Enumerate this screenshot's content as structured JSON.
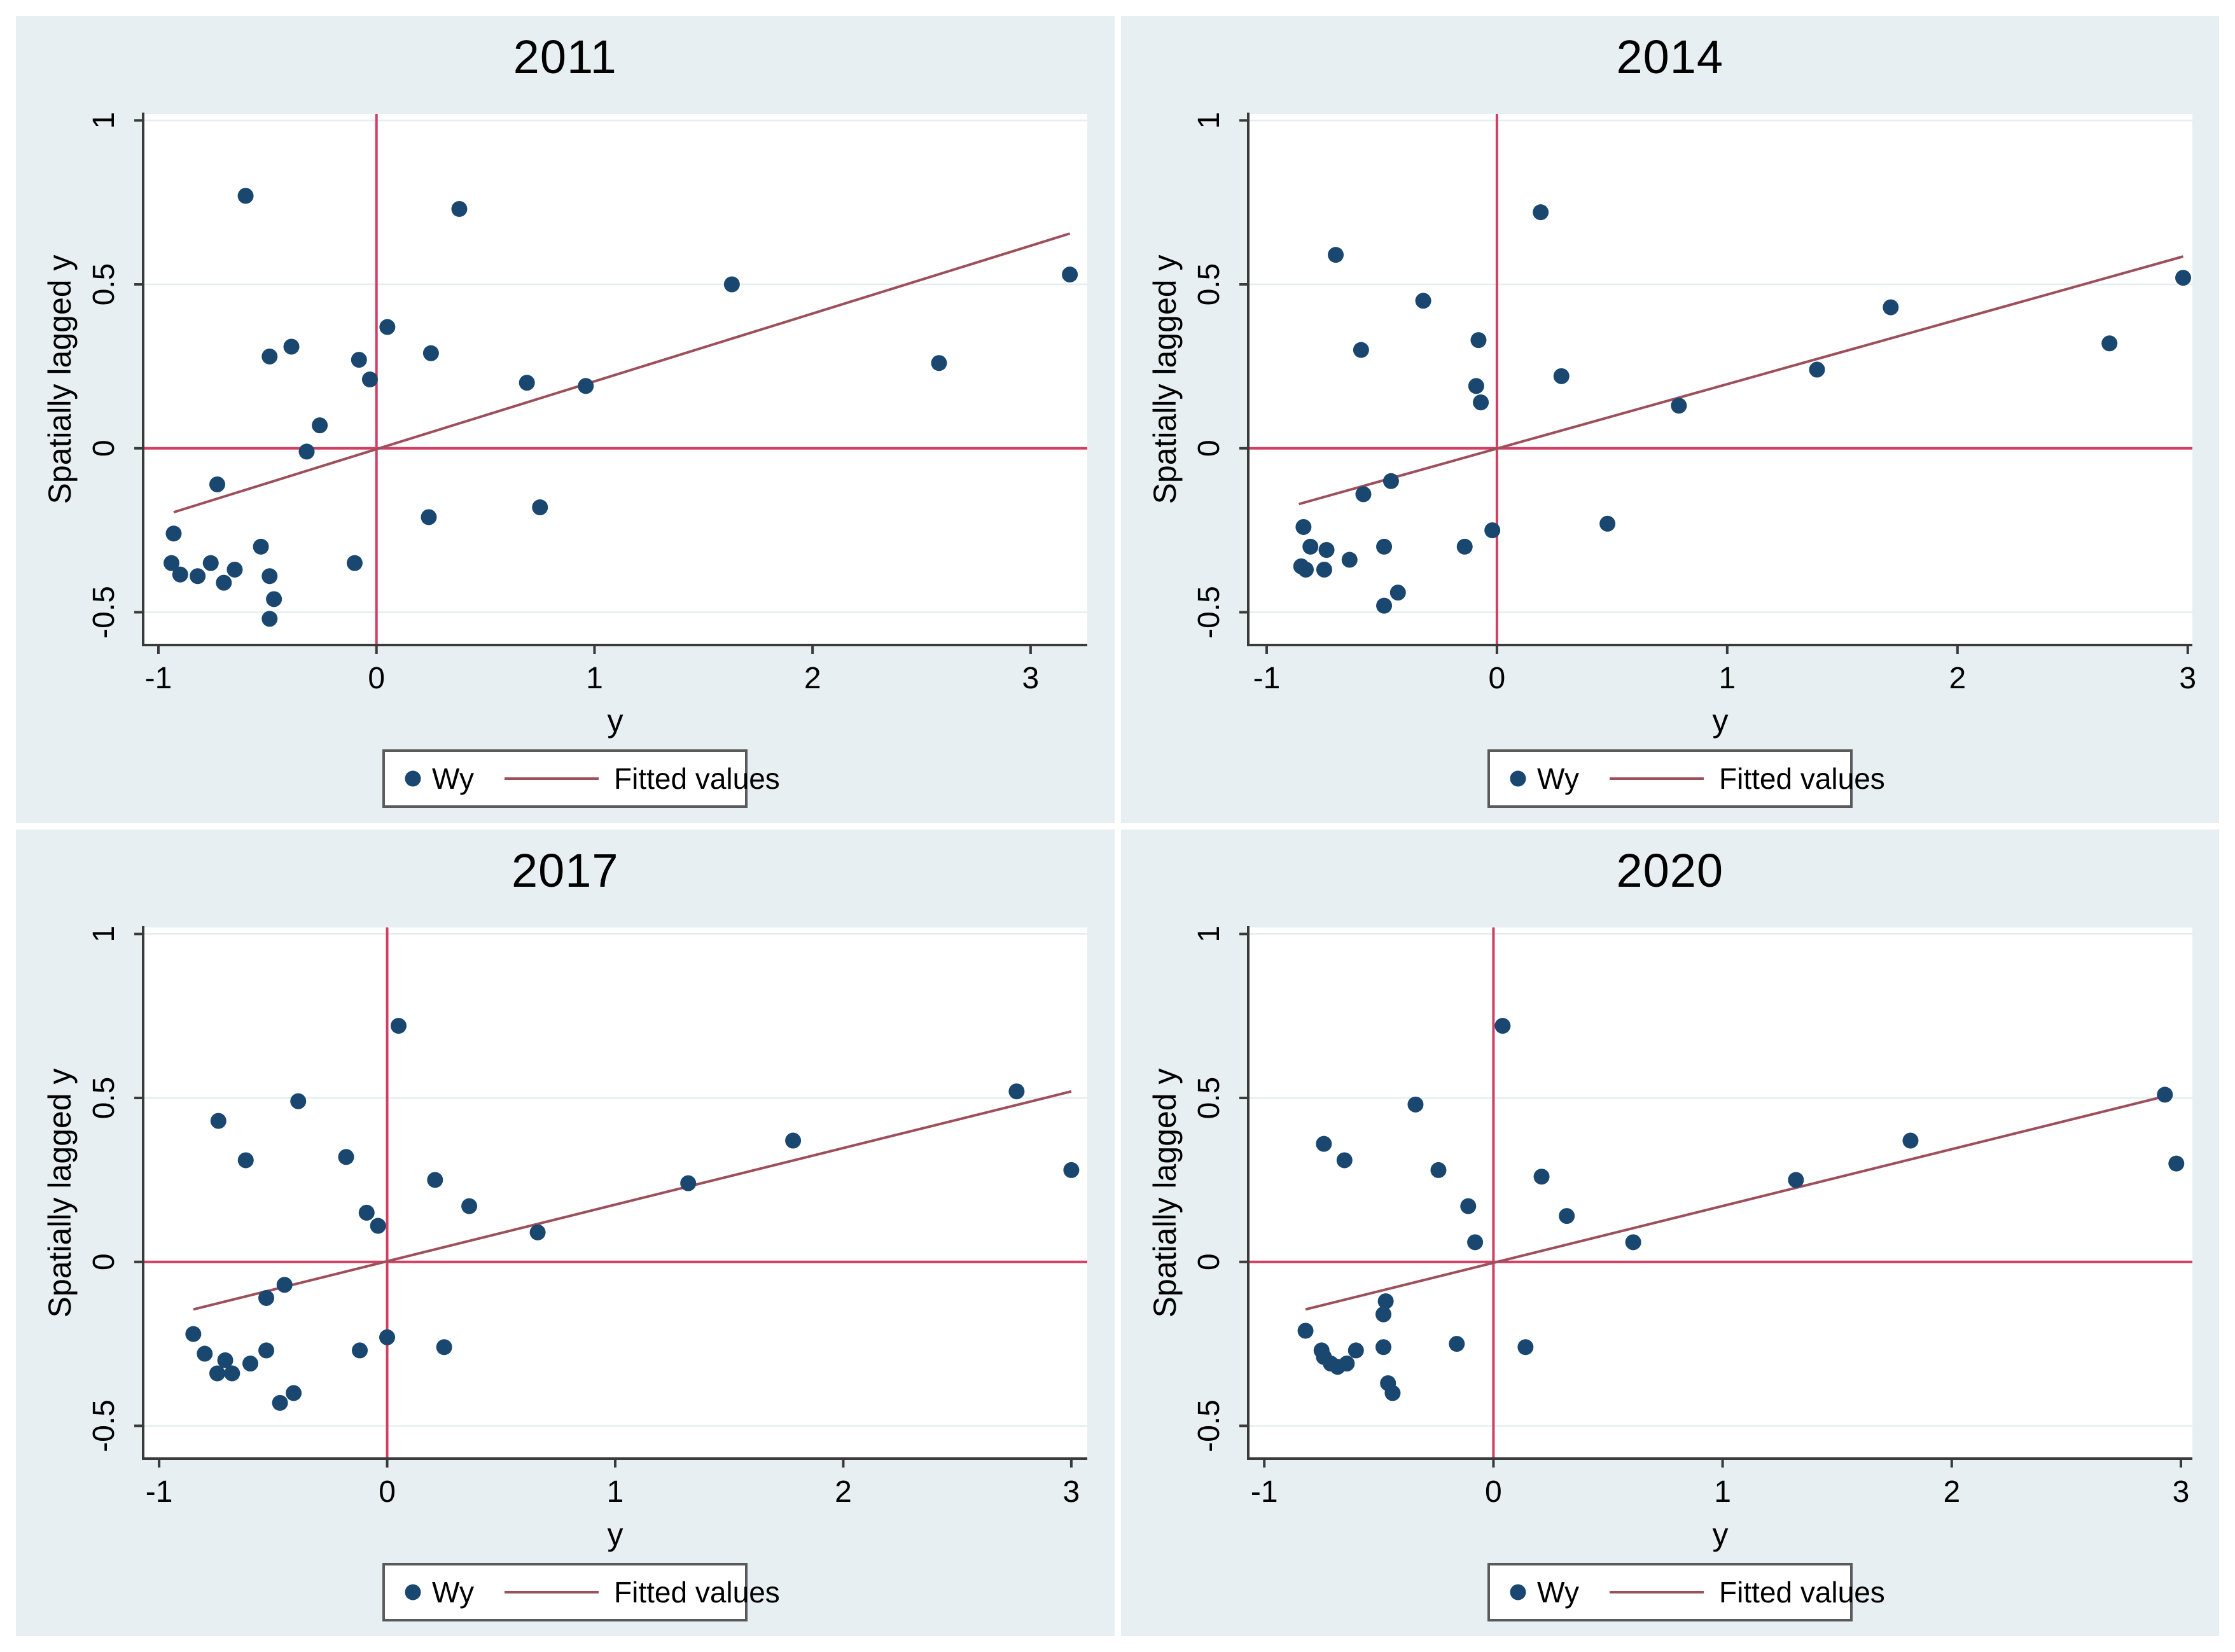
{
  "figure": {
    "background": "#ffffff",
    "panel_background": "#e8eff2",
    "plot_background": "#ffffff",
    "gridline_color": "#e4edf0",
    "axis_color": "#3a3a3a",
    "text_color": "#000000",
    "marker_color": "#1a476f",
    "refline_color": "#d23f63",
    "fitline_color": "#9d4f5b",
    "legend_border_color": "#5a5a5a",
    "legend_background": "#ffffff"
  },
  "chart_data": [
    {
      "type": "scatter",
      "title": "2011",
      "xlabel": "y",
      "ylabel": "Spatially lagged y",
      "xlim": [
        -1.07,
        3.26
      ],
      "ylim": [
        -0.6,
        1.02
      ],
      "x_ticks": [
        -1,
        0,
        1,
        2,
        3
      ],
      "x_tick_labels": [
        "-1",
        "0",
        "1",
        "2",
        "3"
      ],
      "y_ticks": [
        -0.5,
        0,
        0.5,
        1
      ],
      "y_tick_labels": [
        "-0.5",
        "0",
        "0.5",
        "1"
      ],
      "grid": true,
      "ref_vline_x": 0,
      "ref_hline_y": 0,
      "fit_line": {
        "x1": -0.93,
        "y1": -0.195,
        "x2": 3.18,
        "y2": 0.655
      },
      "legend": [
        {
          "marker": "dot",
          "label": "Wy"
        },
        {
          "marker": "line",
          "label": "Fitted values"
        }
      ],
      "points": [
        [
          -0.6,
          0.77
        ],
        [
          0.38,
          0.73
        ],
        [
          3.18,
          0.53
        ],
        [
          1.63,
          0.5
        ],
        [
          0.05,
          0.37
        ],
        [
          -0.39,
          0.31
        ],
        [
          -0.49,
          0.28
        ],
        [
          0.25,
          0.29
        ],
        [
          -0.08,
          0.27
        ],
        [
          2.58,
          0.26
        ],
        [
          -0.03,
          0.21
        ],
        [
          0.69,
          0.2
        ],
        [
          0.96,
          0.19
        ],
        [
          -0.26,
          0.07
        ],
        [
          -0.32,
          -0.01
        ],
        [
          -0.73,
          -0.11
        ],
        [
          0.75,
          -0.18
        ],
        [
          0.24,
          -0.21
        ],
        [
          -0.93,
          -0.26
        ],
        [
          -0.53,
          -0.3
        ],
        [
          -0.94,
          -0.35
        ],
        [
          -0.1,
          -0.35
        ],
        [
          -0.76,
          -0.35
        ],
        [
          -0.65,
          -0.37
        ],
        [
          -0.9,
          -0.385
        ],
        [
          -0.82,
          -0.39
        ],
        [
          -0.49,
          -0.39
        ],
        [
          -0.7,
          -0.41
        ],
        [
          -0.47,
          -0.46
        ],
        [
          -0.49,
          -0.52
        ]
      ]
    },
    {
      "type": "scatter",
      "title": "2014",
      "xlabel": "y",
      "ylabel": "Spatially lagged y",
      "xlim": [
        -1.08,
        3.02
      ],
      "ylim": [
        -0.6,
        1.02
      ],
      "x_ticks": [
        -1,
        0,
        1,
        2,
        3
      ],
      "x_tick_labels": [
        "-1",
        "0",
        "1",
        "2",
        "3"
      ],
      "y_ticks": [
        -0.5,
        0,
        0.5,
        1
      ],
      "y_tick_labels": [
        "-0.5",
        "0",
        "0.5",
        "1"
      ],
      "grid": true,
      "ref_vline_x": 0,
      "ref_hline_y": 0,
      "fit_line": {
        "x1": -0.86,
        "y1": -0.17,
        "x2": 2.98,
        "y2": 0.585
      },
      "legend": [
        {
          "marker": "dot",
          "label": "Wy"
        },
        {
          "marker": "line",
          "label": "Fitted values"
        }
      ],
      "points": [
        [
          0.19,
          0.72
        ],
        [
          -0.7,
          0.59
        ],
        [
          2.98,
          0.52
        ],
        [
          -0.32,
          0.45
        ],
        [
          1.71,
          0.43
        ],
        [
          -0.08,
          0.33
        ],
        [
          2.66,
          0.32
        ],
        [
          -0.59,
          0.3
        ],
        [
          1.39,
          0.24
        ],
        [
          0.28,
          0.22
        ],
        [
          -0.09,
          0.19
        ],
        [
          -0.07,
          0.14
        ],
        [
          0.79,
          0.13
        ],
        [
          -0.46,
          -0.1
        ],
        [
          -0.58,
          -0.14
        ],
        [
          0.48,
          -0.23
        ],
        [
          -0.84,
          -0.24
        ],
        [
          -0.02,
          -0.25
        ],
        [
          -0.49,
          -0.3
        ],
        [
          -0.81,
          -0.3
        ],
        [
          -0.74,
          -0.31
        ],
        [
          -0.14,
          -0.3
        ],
        [
          -0.64,
          -0.34
        ],
        [
          -0.85,
          -0.36
        ],
        [
          -0.83,
          -0.37
        ],
        [
          -0.75,
          -0.37
        ],
        [
          -0.43,
          -0.44
        ],
        [
          -0.49,
          -0.48
        ]
      ]
    },
    {
      "type": "scatter",
      "title": "2017",
      "xlabel": "y",
      "ylabel": "Spatially lagged y",
      "xlim": [
        -1.07,
        3.07
      ],
      "ylim": [
        -0.6,
        1.02
      ],
      "x_ticks": [
        -1,
        0,
        1,
        2,
        3
      ],
      "x_tick_labels": [
        "-1",
        "0",
        "1",
        "2",
        "3"
      ],
      "y_ticks": [
        -0.5,
        0,
        0.5,
        1
      ],
      "y_tick_labels": [
        "-0.5",
        "0",
        "0.5",
        "1"
      ],
      "grid": true,
      "ref_vline_x": 0,
      "ref_hline_y": 0,
      "fit_line": {
        "x1": -0.85,
        "y1": -0.145,
        "x2": 3.0,
        "y2": 0.52
      },
      "legend": [
        {
          "marker": "dot",
          "label": "Wy"
        },
        {
          "marker": "line",
          "label": "Fitted values"
        }
      ],
      "points": [
        [
          0.05,
          0.72
        ],
        [
          2.76,
          0.52
        ],
        [
          -0.39,
          0.49
        ],
        [
          -0.74,
          0.43
        ],
        [
          1.78,
          0.37
        ],
        [
          -0.18,
          0.32
        ],
        [
          -0.62,
          0.31
        ],
        [
          3.0,
          0.28
        ],
        [
          0.21,
          0.25
        ],
        [
          1.32,
          0.24
        ],
        [
          0.36,
          0.17
        ],
        [
          -0.09,
          0.15
        ],
        [
          -0.04,
          0.11
        ],
        [
          0.66,
          0.09
        ],
        [
          -0.45,
          -0.07
        ],
        [
          -0.53,
          -0.11
        ],
        [
          -0.85,
          -0.22
        ],
        [
          0.0,
          -0.23
        ],
        [
          0.25,
          -0.26
        ],
        [
          -0.12,
          -0.27
        ],
        [
          -0.53,
          -0.27
        ],
        [
          -0.8,
          -0.28
        ],
        [
          -0.71,
          -0.3
        ],
        [
          -0.6,
          -0.31
        ],
        [
          -0.745,
          -0.34
        ],
        [
          -0.68,
          -0.34
        ],
        [
          -0.41,
          -0.4
        ],
        [
          -0.47,
          -0.43
        ]
      ]
    },
    {
      "type": "scatter",
      "title": "2020",
      "xlabel": "y",
      "ylabel": "Spatially lagged y",
      "xlim": [
        -1.07,
        3.05
      ],
      "ylim": [
        -0.6,
        1.02
      ],
      "x_ticks": [
        -1,
        0,
        1,
        2,
        3
      ],
      "x_tick_labels": [
        "-1",
        "0",
        "1",
        "2",
        "3"
      ],
      "y_ticks": [
        -0.5,
        0,
        0.5,
        1
      ],
      "y_tick_labels": [
        "-0.5",
        "0",
        "0.5",
        "1"
      ],
      "grid": true,
      "ref_vline_x": 0,
      "ref_hline_y": 0,
      "fit_line": {
        "x1": -0.82,
        "y1": -0.145,
        "x2": 2.93,
        "y2": 0.505
      },
      "legend": [
        {
          "marker": "dot",
          "label": "Wy"
        },
        {
          "marker": "line",
          "label": "Fitted values"
        }
      ],
      "points": [
        [
          0.04,
          0.72
        ],
        [
          2.93,
          0.51
        ],
        [
          -0.34,
          0.48
        ],
        [
          1.82,
          0.37
        ],
        [
          -0.74,
          0.36
        ],
        [
          -0.65,
          0.31
        ],
        [
          2.98,
          0.3
        ],
        [
          -0.24,
          0.28
        ],
        [
          0.21,
          0.26
        ],
        [
          1.32,
          0.25
        ],
        [
          -0.11,
          0.17
        ],
        [
          0.32,
          0.14
        ],
        [
          -0.08,
          0.06
        ],
        [
          0.61,
          0.06
        ],
        [
          -0.47,
          -0.12
        ],
        [
          -0.48,
          -0.16
        ],
        [
          -0.82,
          -0.21
        ],
        [
          -0.16,
          -0.25
        ],
        [
          -0.48,
          -0.26
        ],
        [
          0.14,
          -0.26
        ],
        [
          -0.75,
          -0.27
        ],
        [
          -0.6,
          -0.27
        ],
        [
          -0.74,
          -0.29
        ],
        [
          -0.71,
          -0.31
        ],
        [
          -0.68,
          -0.32
        ],
        [
          -0.64,
          -0.31
        ],
        [
          -0.46,
          -0.37
        ],
        [
          -0.44,
          -0.4
        ]
      ]
    }
  ]
}
